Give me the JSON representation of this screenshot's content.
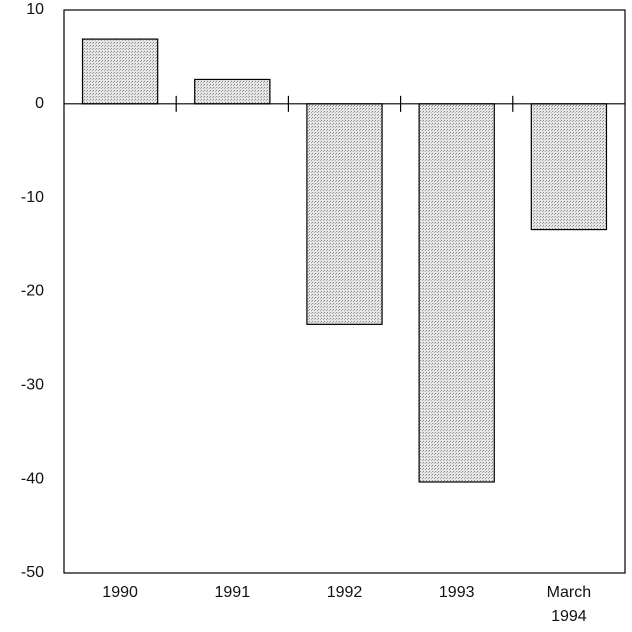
{
  "chart_data": {
    "type": "bar",
    "categories": [
      "1990",
      "1991",
      "1992",
      "1993",
      "March 1994"
    ],
    "values": [
      6.9,
      2.6,
      -23.5,
      -40.3,
      -13.4
    ],
    "color": "#d4d4d4",
    "ylim": [
      -50,
      10
    ],
    "yticks": [
      -50,
      -40,
      -30,
      -20,
      -10,
      0,
      10
    ],
    "grid": false
  }
}
